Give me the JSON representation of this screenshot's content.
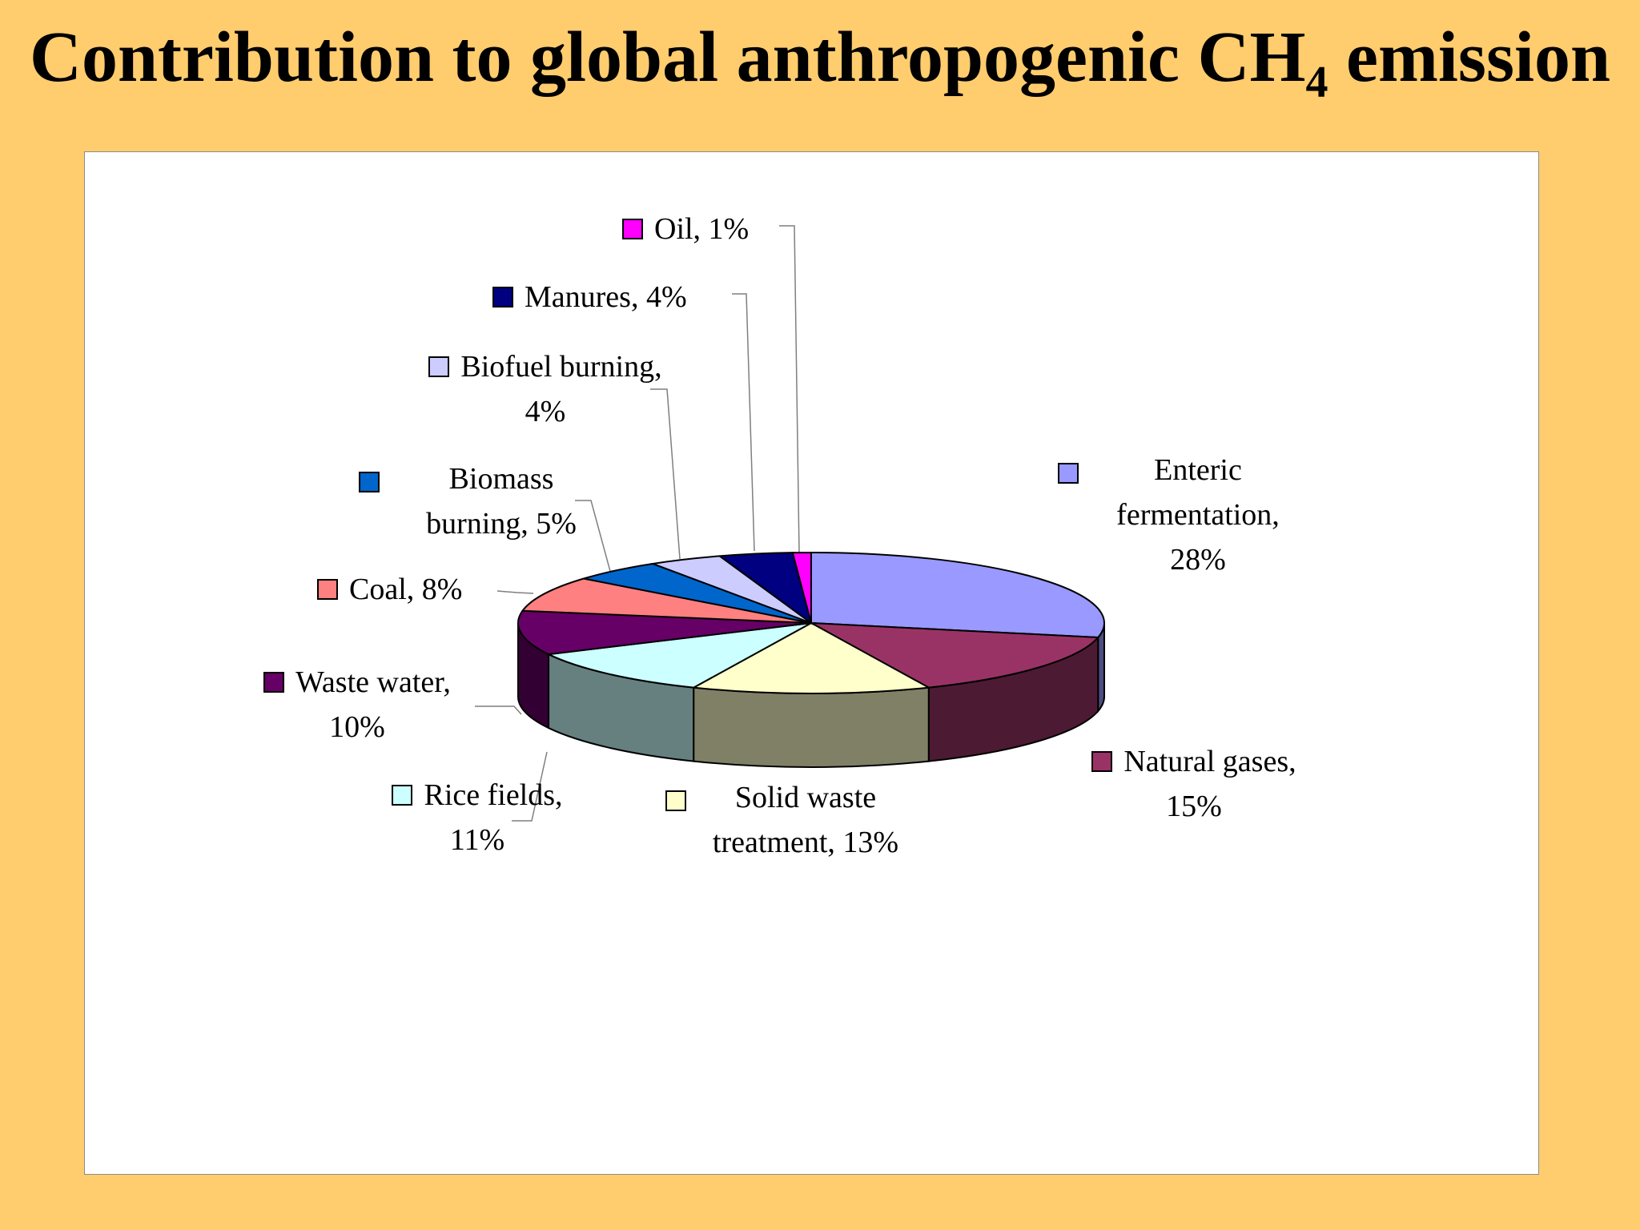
{
  "slide": {
    "title_main": "Contribution to global anthropogenic CH",
    "title_sub": "4",
    "title_tail": " emission"
  },
  "chart_data": {
    "type": "pie",
    "style": "3d-exploded-perspective",
    "start_angle_deg": 0,
    "direction": "clockwise",
    "slices": [
      {
        "label": "Enteric fermentation",
        "value": 28,
        "color": "#9999FF",
        "side_color": "#4D4D80"
      },
      {
        "label": "Natural gases",
        "value": 15,
        "color": "#993366",
        "side_color": "#4D1A33"
      },
      {
        "label": "Solid waste treatment",
        "value": 13,
        "color": "#FFFFCC",
        "side_color": "#808066"
      },
      {
        "label": "Rice fields",
        "value": 11,
        "color": "#CCFFFF",
        "side_color": "#668080"
      },
      {
        "label": "Waste water",
        "value": 10,
        "color": "#660066",
        "side_color": "#330033"
      },
      {
        "label": "Coal",
        "value": 8,
        "color": "#FF8080",
        "side_color": "#804040"
      },
      {
        "label": "Biomass burning",
        "value": 5,
        "color": "#0066CC",
        "side_color": "#003366"
      },
      {
        "label": "Biofuel burning",
        "value": 4,
        "color": "#CCCCFF",
        "side_color": "#666680"
      },
      {
        "label": "Manures",
        "value": 4,
        "color": "#000080",
        "side_color": "#000040"
      },
      {
        "label": "Oil",
        "value": 1,
        "color": "#FF00FF",
        "side_color": "#800080"
      }
    ],
    "labels": {
      "oil": {
        "line1": "Oil, 1%"
      },
      "manures": {
        "line1": "Manures, 4%"
      },
      "biofuel": {
        "line1": "Biofuel burning,",
        "line2": "4%"
      },
      "biomass": {
        "line1": "Biomass",
        "line2": "burning, 5%"
      },
      "coal": {
        "line1": "Coal, 8%"
      },
      "waste_water": {
        "line1": "Waste water,",
        "line2": "10%"
      },
      "rice": {
        "line1": "Rice fields,",
        "line2": "11%"
      },
      "solid": {
        "line1": "Solid waste",
        "line2": "treatment, 13%"
      },
      "natural": {
        "line1": "Natural gases,",
        "line2": "15%"
      },
      "enteric": {
        "line1": "Enteric",
        "line2": "fermentation,",
        "line3": "28%"
      }
    }
  }
}
